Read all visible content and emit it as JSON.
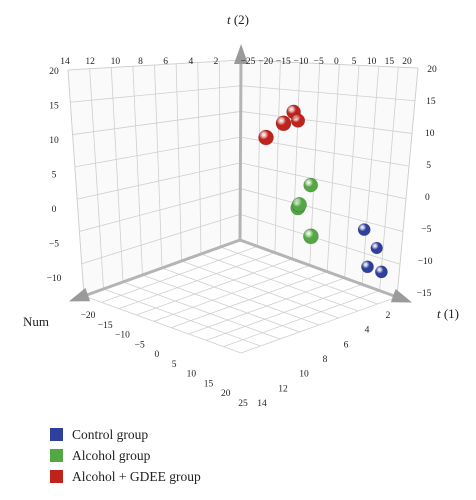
{
  "chart_data": {
    "type": "scatter",
    "dimensions": 3,
    "axes": {
      "t1": {
        "label_var": "t",
        "label_num": "(1)",
        "range": [
          -25,
          20
        ]
      },
      "t2": {
        "label_var": "t",
        "label_num": "(2)",
        "range": [
          -15,
          20
        ]
      },
      "num": {
        "label": "Num",
        "range": [
          0,
          25
        ]
      }
    },
    "ticks": {
      "num_front": [
        "25",
        "20",
        "15",
        "10",
        "5",
        "0",
        "−5",
        "−10",
        "−15",
        "−20"
      ],
      "num_back": [
        "14",
        "12",
        "10",
        "8",
        "6",
        "4",
        "2"
      ],
      "t1_top": [
        "−25",
        "−20",
        "−15",
        "−10",
        "−5",
        "0",
        "5",
        "10",
        "15",
        "20"
      ],
      "t1_bottom": [
        "14",
        "12",
        "10",
        "8",
        "6",
        "4",
        "2"
      ],
      "t2_left": [
        "20",
        "15",
        "10",
        "5",
        "0",
        "−5",
        "−10"
      ],
      "t2_right": [
        "20",
        "15",
        "10",
        "5",
        "0",
        "−5",
        "−10",
        "−15"
      ]
    },
    "series": [
      {
        "name": "Control group",
        "color": "#2e3f9c",
        "points": [
          [
            13,
            -3,
            4
          ],
          [
            16,
            -6,
            3
          ],
          [
            14,
            -10,
            4
          ],
          [
            18,
            -10,
            4
          ]
        ]
      },
      {
        "name": "Alcohol group",
        "color": "#54a843",
        "points": [
          [
            2,
            4,
            11
          ],
          [
            -1,
            -1,
            12
          ],
          [
            0,
            0,
            13
          ],
          [
            4,
            -5,
            14
          ]
        ]
      },
      {
        "name": "Alcohol + GDEE group",
        "color": "#c0221c",
        "points": [
          [
            -4,
            15,
            14
          ],
          [
            -3,
            17,
            11
          ],
          [
            -3,
            15,
            9
          ],
          [
            -9,
            11,
            14
          ]
        ]
      }
    ],
    "grid": true,
    "legend_position": "bottom-left"
  }
}
